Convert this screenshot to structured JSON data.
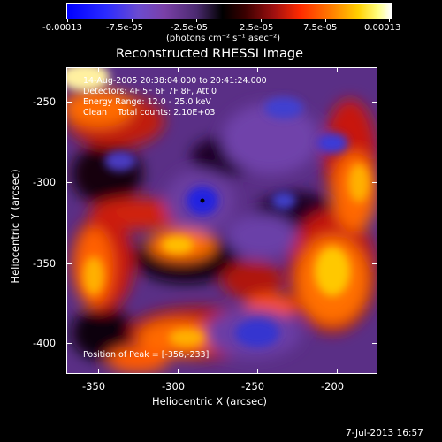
{
  "colorbar": {
    "tick_labels": [
      "-0.00013",
      "-7.5e-05",
      "-2.5e-05",
      "2.5e-05",
      "7.5e-05",
      "0.00013"
    ],
    "units_label": "(photons cm⁻² s⁻¹ asec⁻²)",
    "colors": [
      "#0000ff",
      "#7a40a8",
      "#000000",
      "#ff2a00",
      "#ffd000",
      "#ffffff"
    ]
  },
  "plot": {
    "title": "Reconstructed RHESSI Image",
    "annotations": {
      "time_range": "14-Aug-2005 20:38:04.000 to 20:41:24.000",
      "detectors": "Detectors: 4F 5F 6F 7F 8F, Att 0",
      "energy": "Energy Range: 12.0 - 25.0 keV",
      "clean": "Clean    Total counts: 2.10E+03",
      "peak": "Position of Peak = [-356,-233]"
    },
    "x_axis": {
      "label": "Heliocentric X (arcsec)",
      "ticks": [
        "-350",
        "-300",
        "-250",
        "-200"
      ]
    },
    "y_axis": {
      "label": "Heliocentric Y (arcsec)",
      "ticks": [
        "-250",
        "-300",
        "-350",
        "-400"
      ]
    }
  },
  "footer": {
    "timestamp": "7-Jul-2013 16:57"
  }
}
